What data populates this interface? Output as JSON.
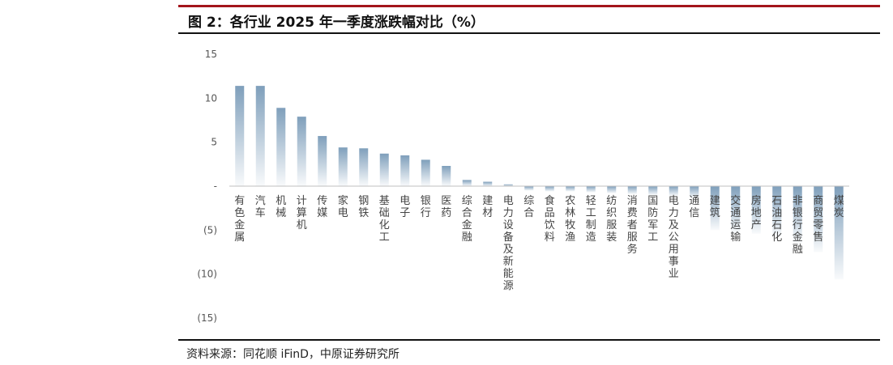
{
  "header": {
    "title": "图 2：各行业 2025 年一季度涨跌幅对比（%）"
  },
  "footer": {
    "source": "资料来源：同花顺 iFinD，中原证券研究所"
  },
  "chart_data": {
    "type": "bar",
    "title": "图 2：各行业 2025 年一季度涨跌幅对比（%）",
    "xlabel": "",
    "ylabel": "",
    "ylim": [
      -15,
      15
    ],
    "yticks": [
      15,
      10,
      5,
      0,
      -5,
      -10,
      -15
    ],
    "ytick_labels": [
      "15",
      "10",
      "5",
      "-",
      "(5)",
      "(10)",
      "(15)"
    ],
    "grid": false,
    "legend": "none",
    "bar_color": "#7f9fbb",
    "categories": [
      "有色金属",
      "汽车",
      "机械",
      "计算机",
      "传媒",
      "家电",
      "钢铁",
      "基础化工",
      "电子",
      "银行",
      "医药",
      "综合金融",
      "建材",
      "电力设备及新能源",
      "综合",
      "食品饮料",
      "农林牧渔",
      "轻工制造",
      "纺织服装",
      "消费者服务",
      "国防军工",
      "电力及公用事业",
      "通信",
      "建筑",
      "交通运输",
      "房地产",
      "石油石化",
      "非银行金融",
      "商贸零售",
      "煤炭"
    ],
    "values": [
      11.4,
      11.4,
      8.9,
      7.9,
      5.7,
      4.4,
      4.3,
      3.7,
      3.5,
      3.0,
      2.3,
      0.7,
      0.5,
      0.2,
      -0.5,
      -0.6,
      -0.6,
      -0.7,
      -0.8,
      -0.9,
      -1.0,
      -1.1,
      -1.3,
      -5.0,
      -5.3,
      -5.4,
      -5.7,
      -6.5,
      -7.5,
      -10.6
    ]
  }
}
